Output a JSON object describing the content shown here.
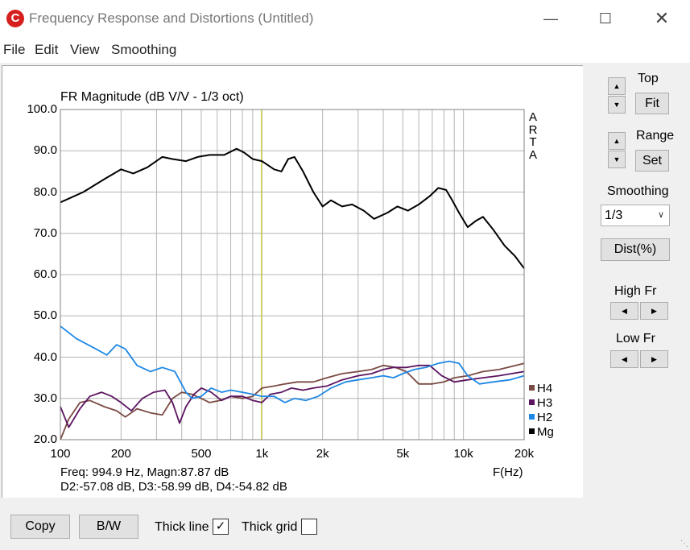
{
  "window": {
    "title": "Frequency Response and Distortions (Untitled)",
    "icon_letter": "C"
  },
  "menu": [
    "File",
    "Edit",
    "View",
    "Smoothing"
  ],
  "chart_data": {
    "type": "line",
    "title": "FR Magnitude (dB V/V - 1/3 oct)",
    "xlabel": "F(Hz)",
    "ylabel": "",
    "xscale": "log",
    "xlim": [
      100,
      20000
    ],
    "ylim": [
      20,
      100
    ],
    "yticks": [
      "100.0",
      "90.0",
      "80.0",
      "70.0",
      "60.0",
      "50.0",
      "40.0",
      "30.0",
      "20.0"
    ],
    "xticks": [
      {
        "v": 100,
        "label": "100"
      },
      {
        "v": 200,
        "label": "200"
      },
      {
        "v": 500,
        "label": "500"
      },
      {
        "v": 1000,
        "label": "1k"
      },
      {
        "v": 2000,
        "label": "2k"
      },
      {
        "v": 5000,
        "label": "5k"
      },
      {
        "v": 10000,
        "label": "10k"
      },
      {
        "v": 20000,
        "label": "20k"
      }
    ],
    "side_text": [
      "A",
      "R",
      "T",
      "A"
    ],
    "cursor_x": 994.9,
    "colors": {
      "Mg": "#000000",
      "H2": "#1e88e5",
      "H3": "#5b1460",
      "H4": "#7a4a44",
      "cursor": "#c8c800"
    },
    "legend": [
      "H4",
      "H3",
      "H2",
      "Mg"
    ],
    "series": [
      {
        "name": "Mg",
        "x": [
          100,
          130,
          170,
          200,
          230,
          270,
          320,
          360,
          420,
          480,
          550,
          650,
          750,
          820,
          900,
          1000,
          1150,
          1250,
          1350,
          1450,
          1600,
          1800,
          2000,
          2200,
          2500,
          2800,
          3200,
          3600,
          4200,
          4700,
          5300,
          6000,
          6800,
          7500,
          8200,
          8800,
          9500,
          10500,
          11500,
          12500,
          14000,
          16000,
          18000,
          20000
        ],
        "y": [
          77.5,
          80,
          83.5,
          85.5,
          84.5,
          86,
          88.5,
          88,
          87.5,
          88.5,
          89,
          89,
          90.5,
          89.5,
          88,
          87.5,
          85.5,
          85,
          88,
          88.5,
          85,
          80,
          76.5,
          78,
          76.5,
          77,
          75.5,
          73.5,
          75,
          76.5,
          75.5,
          77,
          79,
          81,
          80.5,
          78,
          75,
          71.5,
          73,
          74,
          71,
          67,
          64.5,
          61.5
        ]
      },
      {
        "name": "H2",
        "x": [
          100,
          120,
          150,
          170,
          190,
          210,
          240,
          280,
          320,
          370,
          420,
          450,
          500,
          560,
          630,
          700,
          800,
          900,
          1000,
          1150,
          1300,
          1450,
          1650,
          1900,
          2200,
          2600,
          3000,
          3500,
          4000,
          4500,
          5000,
          5700,
          6500,
          7500,
          8500,
          9500,
          10500,
          12000,
          14000,
          17000,
          20000
        ],
        "y": [
          47.5,
          44.5,
          42,
          40.5,
          43,
          42,
          38,
          36.5,
          37.5,
          36.5,
          31.5,
          30,
          30.5,
          32.5,
          31.5,
          32,
          31.5,
          31,
          30.5,
          30.5,
          29,
          30,
          29.5,
          30.5,
          32.5,
          34,
          34.5,
          35,
          35.5,
          35,
          36,
          37,
          37.5,
          38.5,
          39,
          38.5,
          35.5,
          33.5,
          34,
          34.5,
          35.5
        ]
      },
      {
        "name": "H3",
        "x": [
          100,
          110,
          125,
          140,
          160,
          180,
          200,
          225,
          255,
          290,
          330,
          360,
          390,
          420,
          460,
          500,
          560,
          630,
          700,
          800,
          900,
          1000,
          1100,
          1250,
          1400,
          1600,
          1800,
          2100,
          2500,
          3000,
          3500,
          4000,
          4500,
          5200,
          6000,
          6800,
          7800,
          9000,
          10500,
          12500,
          15000,
          20000
        ],
        "y": [
          28,
          23,
          27.5,
          30.5,
          31.5,
          30.5,
          29,
          27,
          30,
          31.5,
          32,
          29,
          24,
          28,
          31,
          32.5,
          31.5,
          29.5,
          30.5,
          30.5,
          29.5,
          29,
          31,
          31.5,
          32.5,
          32,
          32.5,
          33,
          34.5,
          35.5,
          36,
          37,
          37.5,
          37.5,
          38,
          38,
          35.5,
          34,
          34.5,
          35,
          35.5,
          36.5
        ]
      },
      {
        "name": "H4",
        "x": [
          100,
          110,
          125,
          140,
          165,
          190,
          210,
          240,
          280,
          320,
          360,
          400,
          450,
          500,
          550,
          620,
          700,
          800,
          900,
          1000,
          1150,
          1300,
          1500,
          1800,
          2100,
          2500,
          3000,
          3500,
          4000,
          4600,
          5200,
          6000,
          7000,
          8000,
          9000,
          10500,
          12500,
          15000,
          20000
        ],
        "y": [
          20,
          25,
          29,
          29.5,
          28,
          27,
          25.5,
          27.5,
          26.5,
          26,
          30,
          31.5,
          31,
          30,
          29,
          29.5,
          30.5,
          30,
          30.5,
          32.5,
          33,
          33.5,
          34,
          34,
          35,
          36,
          36.5,
          37,
          38,
          37.5,
          36.5,
          33.5,
          33.5,
          34,
          35,
          35.5,
          36.5,
          37,
          38.5
        ]
      }
    ]
  },
  "readout": {
    "line1": "Freq: 994.9 Hz, Magn:87.87 dB",
    "line2": "D2:-57.08 dB, D3:-58.99 dB, D4:-54.82 dB"
  },
  "side_panel": {
    "top_label": "Top",
    "fit_button": "Fit",
    "range_label": "Range",
    "set_button": "Set",
    "smoothing_label": "Smoothing",
    "smoothing_value": "1/3",
    "dist_button": "Dist(%)",
    "high_fr_label": "High Fr",
    "low_fr_label": "Low Fr"
  },
  "bottom": {
    "copy_button": "Copy",
    "bw_button": "B/W",
    "thick_line_label": "Thick line",
    "thick_line_checked": "✓",
    "thick_grid_label": "Thick grid"
  }
}
